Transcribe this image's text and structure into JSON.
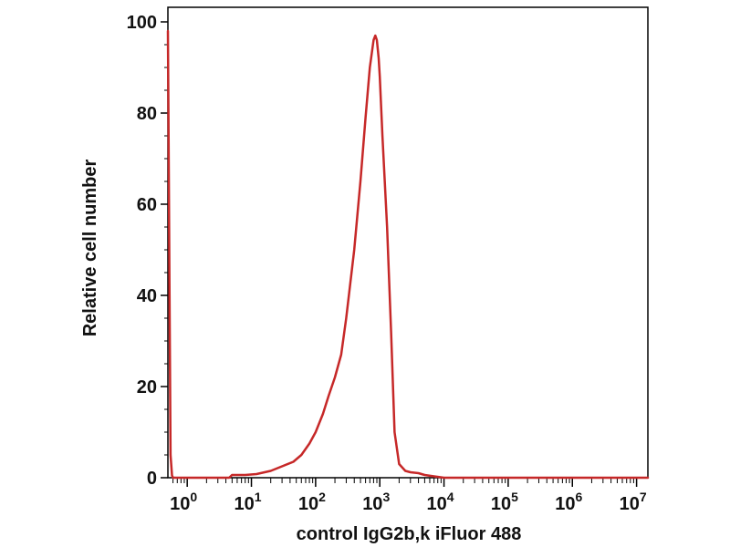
{
  "chart_data": {
    "type": "line",
    "title": "",
    "xlabel": "control IgG2b,k iFluor 488",
    "ylabel": "Relative cell number",
    "x_scale": "log",
    "xlim": [
      0.5,
      15000000
    ],
    "ylim": [
      0,
      100
    ],
    "y_ticks": [
      0,
      20,
      40,
      60,
      80,
      100
    ],
    "x_ticks": [
      {
        "value": 1,
        "base": "10",
        "exp": "0"
      },
      {
        "value": 10,
        "base": "10",
        "exp": "1"
      },
      {
        "value": 100,
        "base": "10",
        "exp": "2"
      },
      {
        "value": 1000,
        "base": "10",
        "exp": "3"
      },
      {
        "value": 10000,
        "base": "10",
        "exp": "4"
      },
      {
        "value": 100000,
        "base": "10",
        "exp": "5"
      },
      {
        "value": 1000000,
        "base": "10",
        "exp": "6"
      },
      {
        "value": 10000000,
        "base": "10",
        "exp": "7"
      }
    ],
    "grid": false,
    "series": [
      {
        "color": "#c62828",
        "x": [
          0.5,
          0.51,
          0.53,
          0.55,
          0.58,
          0.6,
          0.7,
          1,
          2,
          4.5,
          5,
          8,
          12,
          20,
          30,
          45,
          60,
          80,
          100,
          130,
          160,
          200,
          250,
          300,
          400,
          500,
          600,
          700,
          800,
          850,
          900,
          960,
          1000,
          1100,
          1300,
          1500,
          1700,
          2000,
          2500,
          3000,
          4000,
          5000,
          7000,
          10000,
          100000,
          1000000,
          15000000
        ],
        "y": [
          98,
          80,
          40,
          5,
          0.5,
          0,
          0,
          0,
          0,
          0,
          0.6,
          0.6,
          0.8,
          1.5,
          2.5,
          3.5,
          5,
          7.5,
          10,
          14,
          18,
          22,
          27,
          35,
          50,
          65,
          79,
          90,
          96,
          97,
          96,
          92,
          88,
          75,
          55,
          32,
          10,
          3,
          1.5,
          1.2,
          1,
          0.6,
          0.3,
          0,
          0,
          0,
          0
        ]
      }
    ]
  }
}
